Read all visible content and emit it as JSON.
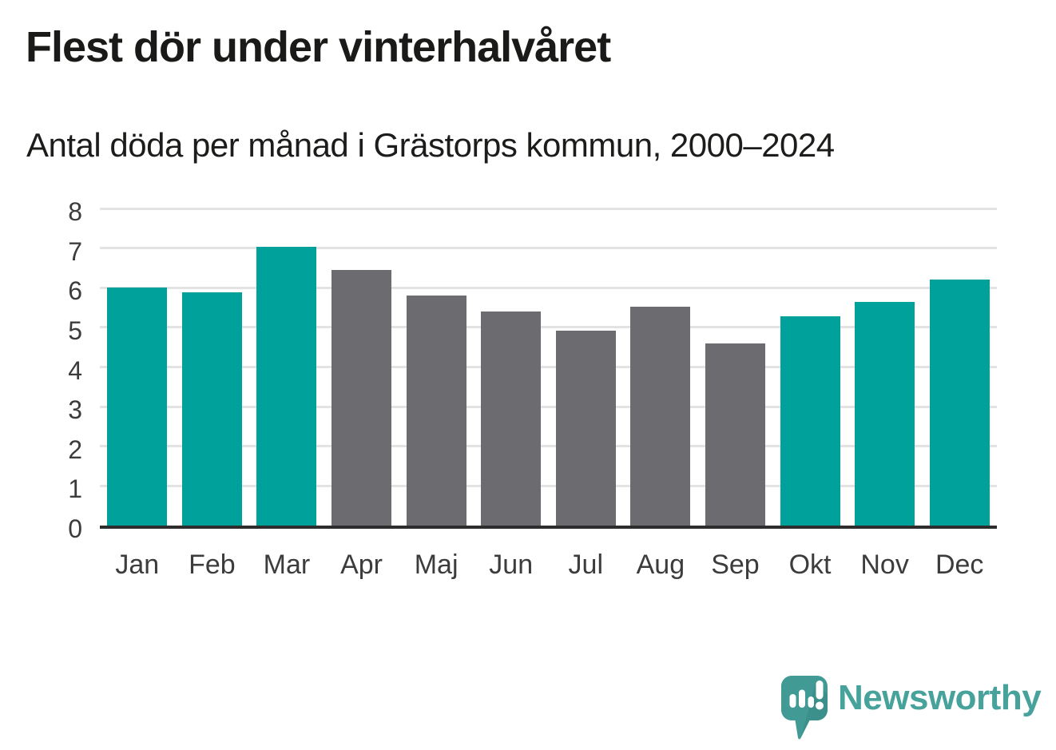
{
  "title": "Flest dör under vinterhalvåret",
  "subtitle": "Antal döda per månad i Grästorps kommun, 2000–2024",
  "footer": {
    "brand": "Newsworthy"
  },
  "colors": {
    "highlight": "#00a19a",
    "muted": "#6b6b70",
    "gridline": "#e3e3e3",
    "axis": "#2d2d2d",
    "logo_bubble": "#429a95",
    "logo_text": "#46a29b"
  },
  "chart_data": {
    "type": "bar",
    "title": "Flest dör under vinterhalvåret",
    "subtitle": "Antal döda per månad i Grästorps kommun, 2000–2024",
    "categories": [
      "Jan",
      "Feb",
      "Mar",
      "Apr",
      "Maj",
      "Jun",
      "Jul",
      "Aug",
      "Sep",
      "Okt",
      "Nov",
      "Dec"
    ],
    "values": [
      6.0,
      5.88,
      7.04,
      6.44,
      5.8,
      5.4,
      4.92,
      5.52,
      4.6,
      5.28,
      5.64,
      6.2
    ],
    "bar_palette": [
      "highlight",
      "highlight",
      "highlight",
      "muted",
      "muted",
      "muted",
      "muted",
      "muted",
      "muted",
      "highlight",
      "highlight",
      "highlight"
    ],
    "yticks": [
      0,
      1,
      2,
      3,
      4,
      5,
      6,
      7,
      8
    ],
    "ylim": [
      0,
      8
    ],
    "xlabel": "",
    "ylabel": "",
    "grid": true,
    "legend": "none"
  }
}
